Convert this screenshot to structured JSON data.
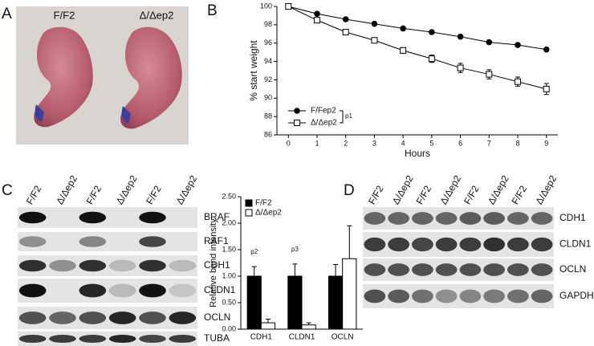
{
  "panel_labels": [
    "A",
    "B",
    "C",
    "D"
  ],
  "panel_a": {
    "labels": [
      "F/F2",
      "Δ/Δep2"
    ]
  },
  "panel_c_blot": {
    "lanes": [
      "F/F2",
      "Δ/Δep2",
      "F/F2",
      "Δ/Δep2",
      "F/F2",
      "Δ/Δep2"
    ],
    "rows": [
      "BRAF",
      "RAF1",
      "CDH1",
      "CLDN1",
      "OCLN",
      "TUBA"
    ]
  },
  "panel_d_blot": {
    "lanes": [
      "F/F2",
      "Δ/Δep2",
      "F/F2",
      "Δ/Δep2",
      "F/F2",
      "Δ/Δep2",
      "F/F2",
      "Δ/Δep2"
    ],
    "rows": [
      "CDH1",
      "CLDN1",
      "OCLN",
      "GAPDH"
    ]
  },
  "chart_data": [
    {
      "type": "line",
      "x_label": "Hours",
      "y_label": "% start weight",
      "x": [
        0,
        1,
        2,
        3,
        4,
        5,
        6,
        7,
        8,
        9
      ],
      "xlim": [
        -0.4,
        9.4
      ],
      "xticks": [
        0,
        1,
        2,
        3,
        4,
        5,
        6,
        7,
        8,
        9
      ],
      "ylim": [
        86,
        100
      ],
      "yticks": [
        86,
        88,
        90,
        92,
        94,
        96,
        98,
        100
      ],
      "series": [
        {
          "name": "F/Fep2",
          "color": "#000000",
          "marker": "filled-circle",
          "values": [
            100,
            99.2,
            98.6,
            98.1,
            97.6,
            97.2,
            96.7,
            96.1,
            95.8,
            95.3
          ]
        },
        {
          "name": "Δ/Δep2",
          "color": "#000000",
          "marker": "open-square",
          "values": [
            100,
            98.5,
            97.2,
            96.3,
            95.2,
            94.3,
            93.3,
            92.6,
            91.8,
            91.0
          ],
          "errors": [
            0,
            0.2,
            0.2,
            0.2,
            0.3,
            0.4,
            0.5,
            0.5,
            0.5,
            0.6
          ]
        }
      ],
      "annotation": "p1",
      "legend": "lower-left"
    },
    {
      "type": "bar",
      "y_label": "Relative band intensity",
      "categories": [
        "CDH1",
        "CLDN1",
        "OCLN"
      ],
      "ylim": [
        0,
        2.5
      ],
      "yticks": [
        {
          "value": 0,
          "label": "0.00"
        },
        {
          "value": 0.5,
          "label": "0.50"
        },
        {
          "value": 1,
          "label": "1.00"
        },
        {
          "value": 1.5,
          "label": "1.50"
        },
        {
          "value": 2,
          "label": "2.00"
        },
        {
          "value": 2.5,
          "label": "2.50"
        }
      ],
      "series": [
        {
          "name": "F/F2",
          "color": "#000000",
          "values": [
            1.0,
            1.0,
            1.0
          ],
          "errors": [
            0.18,
            0.23,
            0.22
          ]
        },
        {
          "name": "Δ/Δep2",
          "color": "#ffffff",
          "values": [
            0.12,
            0.08,
            1.33
          ],
          "errors": [
            0.07,
            0.04,
            0.62
          ]
        }
      ],
      "annotations": [
        "p2",
        "p3"
      ],
      "legend": "upper-left"
    }
  ]
}
